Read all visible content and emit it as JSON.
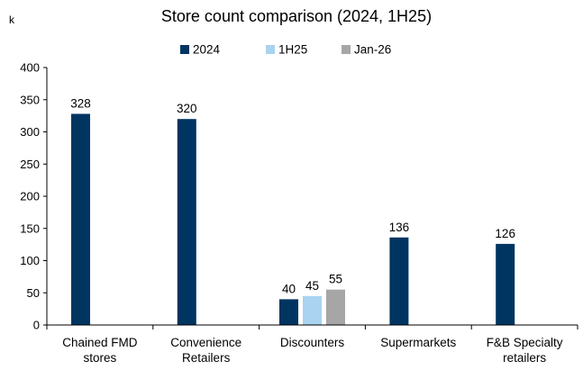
{
  "chart_data": {
    "type": "bar",
    "title": "Store count comparison (2024, 1H25)",
    "ylabel": "k",
    "xlabel": "",
    "ylim": [
      0,
      400
    ],
    "yticks": [
      0,
      50,
      100,
      150,
      200,
      250,
      300,
      350,
      400
    ],
    "legend_position": "top",
    "grid": false,
    "categories": [
      [
        "Chained FMD",
        "stores"
      ],
      [
        "Convenience",
        "Retailers"
      ],
      [
        "Discounters"
      ],
      [
        "Supermarkets"
      ],
      [
        "F&B Specialty",
        "retailers"
      ]
    ],
    "series": [
      {
        "name": "2024",
        "color": "#003561",
        "values": [
          328,
          320,
          40,
          136,
          126
        ]
      },
      {
        "name": "1H25",
        "color": "#a9d3f0",
        "values": [
          null,
          null,
          45,
          null,
          null
        ]
      },
      {
        "name": "Jan-26",
        "color": "#a6a6a6",
        "values": [
          null,
          null,
          55,
          null,
          null
        ]
      }
    ]
  }
}
